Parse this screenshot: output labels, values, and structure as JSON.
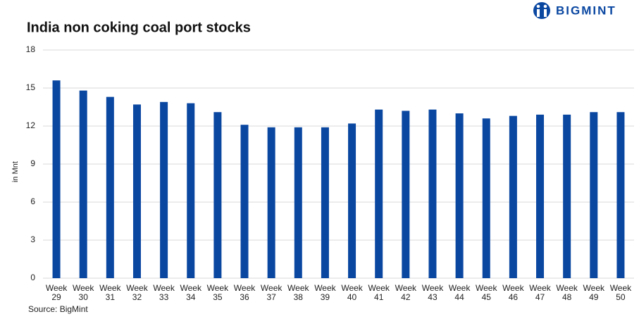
{
  "chart_data": {
    "type": "bar",
    "title": "India non coking coal port stocks",
    "brand": "BIGMINT",
    "source": "Source: BigMint",
    "y_label": "in Mnt",
    "categories": [
      "Week 29",
      "Week 30",
      "Week 31",
      "Week 32",
      "Week 33",
      "Week 34",
      "Week 35",
      "Week 36",
      "Week 37",
      "Week 38",
      "Week 39",
      "Week 40",
      "Week 41",
      "Week 42",
      "Week 43",
      "Week 44",
      "Week 45",
      "Week 46",
      "Week 47",
      "Week 48",
      "Week 49",
      "Week 50"
    ],
    "values": [
      15.6,
      14.8,
      14.3,
      13.7,
      13.9,
      13.8,
      13.1,
      12.1,
      11.9,
      11.9,
      11.9,
      12.2,
      13.3,
      13.2,
      13.3,
      13.0,
      12.6,
      12.8,
      12.9,
      12.9,
      13.1,
      13.1
    ],
    "color": "#0a47a1",
    "ylim": [
      0,
      18
    ],
    "yticks": [
      0,
      3,
      6,
      9,
      12,
      15,
      18
    ],
    "grid": true
  }
}
